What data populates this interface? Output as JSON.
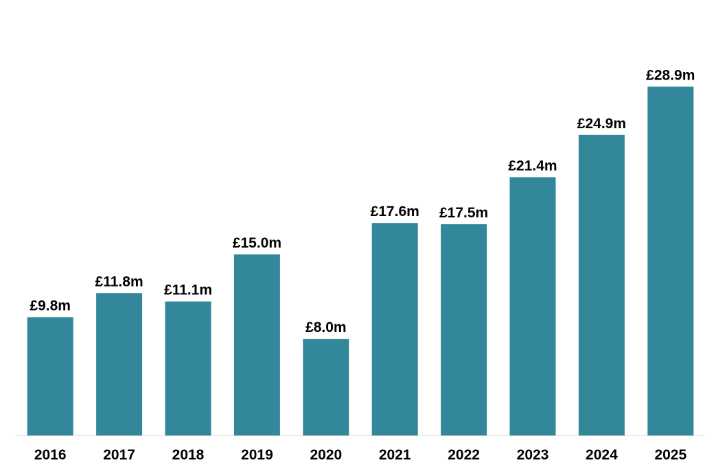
{
  "chart_data": {
    "type": "bar",
    "categories": [
      "2016",
      "2017",
      "2018",
      "2019",
      "2020",
      "2021",
      "2022",
      "2023",
      "2024",
      "2025"
    ],
    "values": [
      9.8,
      11.8,
      11.1,
      15.0,
      8.0,
      17.6,
      17.5,
      21.4,
      24.9,
      28.9
    ],
    "data_labels": [
      "£9.8m",
      "£11.8m",
      "£11.1m",
      "£15.0m",
      "£8.0m",
      "£17.6m",
      "£17.5m",
      "£21.4m",
      "£24.9m",
      "£28.9m"
    ],
    "title": "",
    "xlabel": "",
    "ylabel": "",
    "ylim": [
      0,
      33
    ],
    "grid": false,
    "legend": "none",
    "bar_color": "#32879B",
    "axis_color": "#D9D9D9"
  }
}
